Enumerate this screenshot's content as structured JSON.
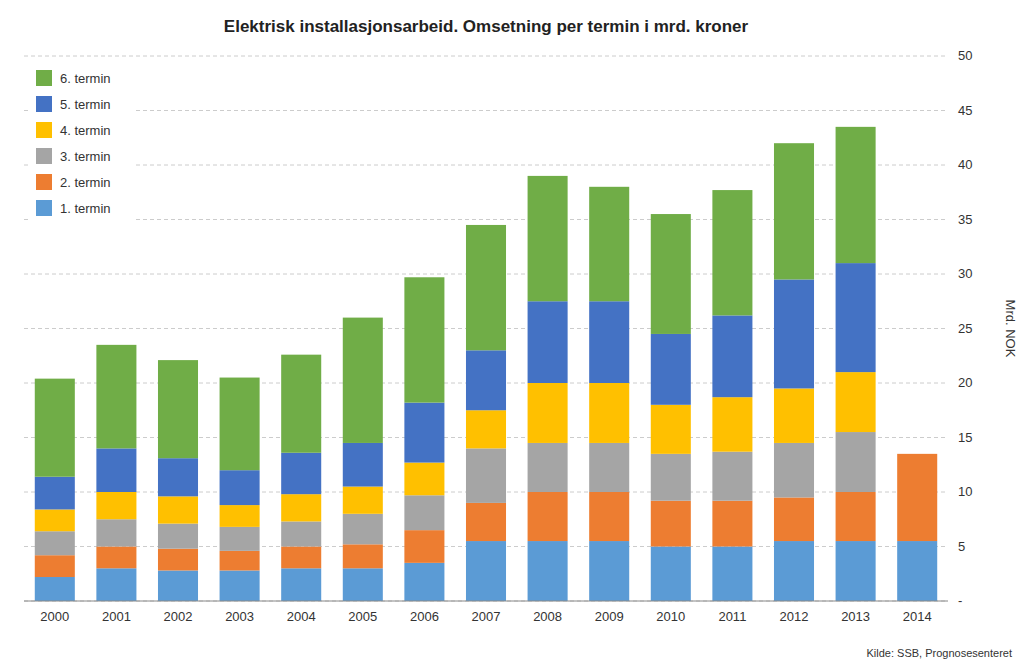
{
  "chart_data": {
    "type": "bar",
    "stacked": true,
    "title": "Elektrisk installasjonsarbeid. Omsetning per termin i mrd. kroner",
    "ylabel": "Mrd. NOK",
    "source": "Kilde: SSB, Prognosesenteret",
    "categories": [
      "2000",
      "2001",
      "2002",
      "2003",
      "2004",
      "2005",
      "2006",
      "2007",
      "2008",
      "2009",
      "2010",
      "2011",
      "2012",
      "2013",
      "2014"
    ],
    "series": [
      {
        "name": "1. termin",
        "color": "#5B9BD5",
        "values": [
          2.2,
          3.0,
          2.8,
          2.8,
          3.0,
          3.0,
          3.5,
          5.5,
          5.5,
          5.5,
          5.0,
          5.0,
          5.5,
          5.5,
          5.5
        ]
      },
      {
        "name": "2. termin",
        "color": "#ED7D31",
        "values": [
          2.0,
          2.0,
          2.0,
          1.8,
          2.0,
          2.2,
          3.0,
          3.5,
          4.5,
          4.5,
          4.2,
          4.2,
          4.0,
          4.5,
          8.0
        ]
      },
      {
        "name": "3. termin",
        "color": "#A5A5A5",
        "values": [
          2.2,
          2.5,
          2.3,
          2.2,
          2.3,
          2.8,
          3.2,
          5.0,
          4.5,
          4.5,
          4.3,
          4.5,
          5.0,
          5.5,
          0.0
        ]
      },
      {
        "name": "4. termin",
        "color": "#FFC000",
        "values": [
          2.0,
          2.5,
          2.5,
          2.0,
          2.5,
          2.5,
          3.0,
          3.5,
          5.5,
          5.5,
          4.5,
          5.0,
          5.0,
          5.5,
          0.0
        ]
      },
      {
        "name": "5. termin",
        "color": "#4472C4",
        "values": [
          3.0,
          4.0,
          3.5,
          3.2,
          3.8,
          4.0,
          5.5,
          5.5,
          7.5,
          7.5,
          6.5,
          7.5,
          10.0,
          10.0,
          0.0
        ]
      },
      {
        "name": "6. termin",
        "color": "#70AD47",
        "values": [
          9.0,
          9.5,
          9.0,
          8.5,
          9.0,
          11.5,
          11.5,
          11.5,
          11.5,
          10.5,
          11.0,
          11.5,
          12.5,
          12.5,
          0.0
        ]
      }
    ],
    "ylim": [
      0,
      50
    ],
    "yticks": [
      {
        "value": 0,
        "label": "-"
      },
      5,
      10,
      15,
      20,
      25,
      30,
      35,
      40,
      45,
      50
    ],
    "grid": true,
    "legend": "upper left"
  }
}
